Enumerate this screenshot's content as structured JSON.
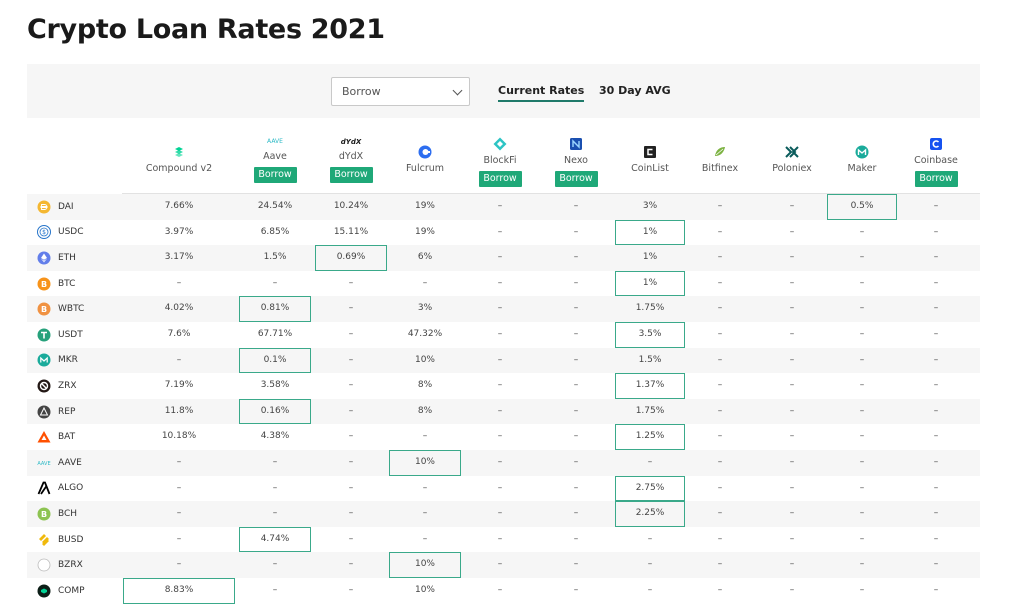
{
  "page": {
    "title": "Crypto Loan Rates 2021"
  },
  "controls": {
    "select_value": "Borrow",
    "tabs": [
      "Current Rates",
      "30 Day AVG"
    ]
  },
  "providers": [
    {
      "name": "Compound v2",
      "borrow": "",
      "color": "#00d395",
      "icon": "compound-icon"
    },
    {
      "name": "Aave",
      "borrow": "Borrow",
      "color": "#2ebac6",
      "icon": "aave-icon",
      "logo_text": "AAVE"
    },
    {
      "name": "dYdX",
      "borrow": "Borrow",
      "color": "#1a1a1a",
      "icon": "dydx-icon",
      "logo_text": "dYdX"
    },
    {
      "name": "Fulcrum",
      "borrow": "",
      "color": "#2d6ef0",
      "icon": "fulcrum-icon"
    },
    {
      "name": "BlockFi",
      "borrow": "Borrow",
      "color": "#2dc4c4",
      "icon": "blockfi-icon"
    },
    {
      "name": "Nexo",
      "borrow": "Borrow",
      "color": "#1a4fb0",
      "icon": "nexo-icon"
    },
    {
      "name": "CoinList",
      "borrow": "",
      "color": "#222222",
      "icon": "coinlist-icon"
    },
    {
      "name": "Bitfinex",
      "borrow": "",
      "color": "#7db343",
      "icon": "bitfinex-icon"
    },
    {
      "name": "Poloniex",
      "borrow": "",
      "color": "#0a5b5b",
      "icon": "poloniex-icon"
    },
    {
      "name": "Maker",
      "borrow": "",
      "color": "#1aab9b",
      "icon": "maker-icon"
    },
    {
      "name": "Coinbase",
      "borrow": "Borrow",
      "color": "#1652f0",
      "icon": "coinbase-icon"
    }
  ],
  "rows": [
    {
      "asset": "DAI",
      "color": "#f4b731",
      "icon": "dai-icon",
      "rates": [
        "7.66%",
        "24.54%",
        "10.24%",
        "19%",
        "–",
        "–",
        "3%",
        "–",
        "–",
        "0.5%",
        "–"
      ],
      "best": 9
    },
    {
      "asset": "USDC",
      "color": "#2775ca",
      "icon": "usdc-icon",
      "rates": [
        "3.97%",
        "6.85%",
        "15.11%",
        "19%",
        "–",
        "–",
        "1%",
        "–",
        "–",
        "–",
        "–"
      ],
      "best": 6
    },
    {
      "asset": "ETH",
      "color": "#627eea",
      "icon": "eth-icon",
      "rates": [
        "3.17%",
        "1.5%",
        "0.69%",
        "6%",
        "–",
        "–",
        "1%",
        "–",
        "–",
        "–",
        "–"
      ],
      "best": 2
    },
    {
      "asset": "BTC",
      "color": "#f7931a",
      "icon": "btc-icon",
      "rates": [
        "–",
        "–",
        "–",
        "–",
        "–",
        "–",
        "1%",
        "–",
        "–",
        "–",
        "–"
      ],
      "best": 6
    },
    {
      "asset": "WBTC",
      "color": "#f09242",
      "icon": "wbtc-icon",
      "rates": [
        "4.02%",
        "0.81%",
        "–",
        "3%",
        "–",
        "–",
        "1.75%",
        "–",
        "–",
        "–",
        "–"
      ],
      "best": 1
    },
    {
      "asset": "USDT",
      "color": "#26a17b",
      "icon": "usdt-icon",
      "rates": [
        "7.6%",
        "67.71%",
        "–",
        "47.32%",
        "–",
        "–",
        "3.5%",
        "–",
        "–",
        "–",
        "–"
      ],
      "best": 6
    },
    {
      "asset": "MKR",
      "color": "#1aab9b",
      "icon": "mkr-icon",
      "rates": [
        "–",
        "0.1%",
        "–",
        "10%",
        "–",
        "–",
        "1.5%",
        "–",
        "–",
        "–",
        "–"
      ],
      "best": 1
    },
    {
      "asset": "ZRX",
      "color": "#231815",
      "icon": "zrx-icon",
      "rates": [
        "7.19%",
        "3.58%",
        "–",
        "8%",
        "–",
        "–",
        "1.37%",
        "–",
        "–",
        "–",
        "–"
      ],
      "best": 6
    },
    {
      "asset": "REP",
      "color": "#553580",
      "icon": "rep-icon",
      "rates": [
        "11.8%",
        "0.16%",
        "–",
        "8%",
        "–",
        "–",
        "1.75%",
        "–",
        "–",
        "–",
        "–"
      ],
      "best": 1
    },
    {
      "asset": "BAT",
      "color": "#ff5000",
      "icon": "bat-icon",
      "rates": [
        "10.18%",
        "4.38%",
        "–",
        "–",
        "–",
        "–",
        "1.25%",
        "–",
        "–",
        "–",
        "–"
      ],
      "best": 6
    },
    {
      "asset": "AAVE",
      "color": "#2ebac6",
      "icon": "aave-icon",
      "rates": [
        "–",
        "–",
        "–",
        "10%",
        "–",
        "–",
        "–",
        "–",
        "–",
        "–",
        "–"
      ],
      "best": 3
    },
    {
      "asset": "ALGO",
      "color": "#000000",
      "icon": "algo-icon",
      "rates": [
        "–",
        "–",
        "–",
        "–",
        "–",
        "–",
        "2.75%",
        "–",
        "–",
        "–",
        "–"
      ],
      "best": 6
    },
    {
      "asset": "BCH",
      "color": "#8dc351",
      "icon": "bch-icon",
      "rates": [
        "–",
        "–",
        "–",
        "–",
        "–",
        "–",
        "2.25%",
        "–",
        "–",
        "–",
        "–"
      ],
      "best": 6
    },
    {
      "asset": "BUSD",
      "color": "#f0b90b",
      "icon": "busd-icon",
      "rates": [
        "–",
        "4.74%",
        "–",
        "–",
        "–",
        "–",
        "–",
        "–",
        "–",
        "–",
        "–"
      ],
      "best": 1
    },
    {
      "asset": "BZRX",
      "color": "#ffffff",
      "icon": "bzrx-icon",
      "rates": [
        "–",
        "–",
        "–",
        "10%",
        "–",
        "–",
        "–",
        "–",
        "–",
        "–",
        "–"
      ],
      "best": 3
    },
    {
      "asset": "COMP",
      "color": "#00d395",
      "icon": "comp-icon",
      "rates": [
        "8.83%",
        "–",
        "–",
        "10%",
        "–",
        "–",
        "–",
        "–",
        "–",
        "–",
        "–"
      ],
      "best": 0
    }
  ]
}
